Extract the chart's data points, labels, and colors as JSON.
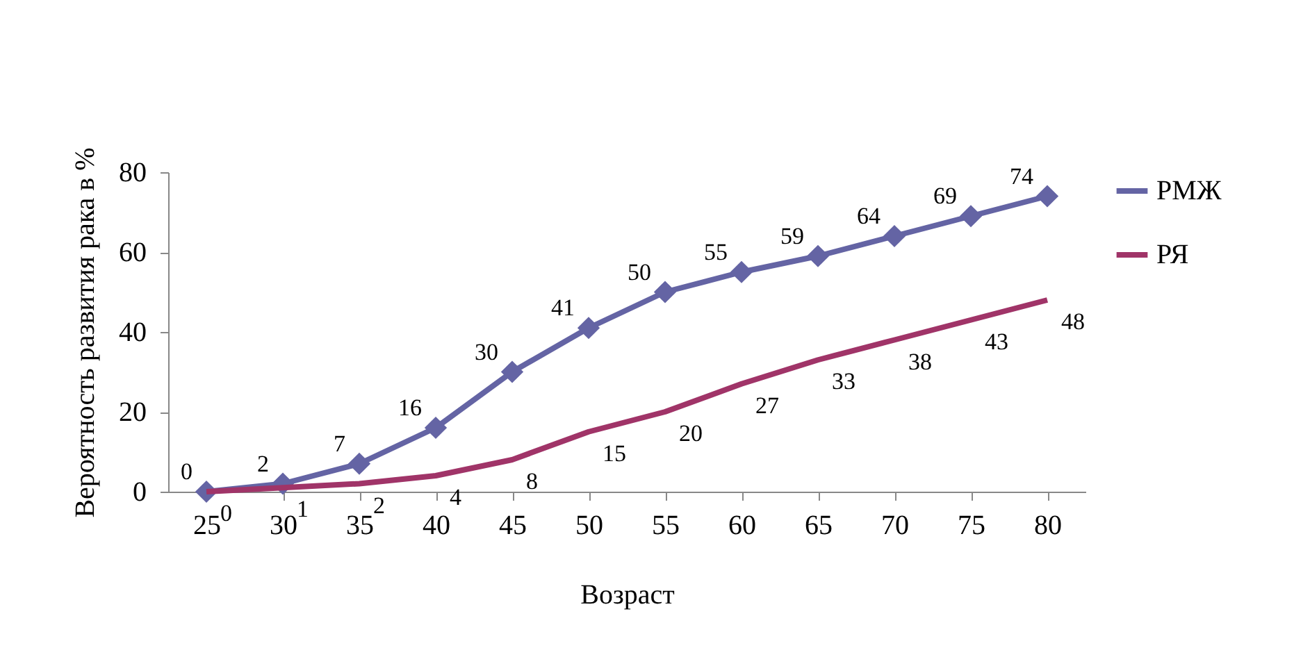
{
  "chart_data": {
    "type": "line",
    "xlabel": "Возраст",
    "ylabel": "Вероятность развития рака в %",
    "categories": [
      "25",
      "30",
      "35",
      "40",
      "45",
      "50",
      "55",
      "60",
      "65",
      "70",
      "75",
      "80"
    ],
    "series": [
      {
        "name": "РМЖ",
        "color": "#6464a4",
        "marker": "diamond",
        "values": [
          0,
          2,
          7,
          16,
          30,
          41,
          50,
          55,
          59,
          64,
          69,
          74
        ]
      },
      {
        "name": "РЯ",
        "color": "#a03468",
        "marker": "none",
        "values": [
          0,
          1,
          2,
          4,
          8,
          15,
          20,
          27,
          33,
          38,
          43,
          48
        ]
      }
    ],
    "ylim": [
      0,
      80
    ],
    "yticks": [
      0,
      20,
      40,
      60,
      80
    ],
    "data_labels": true,
    "legend": "right",
    "grid": false
  }
}
